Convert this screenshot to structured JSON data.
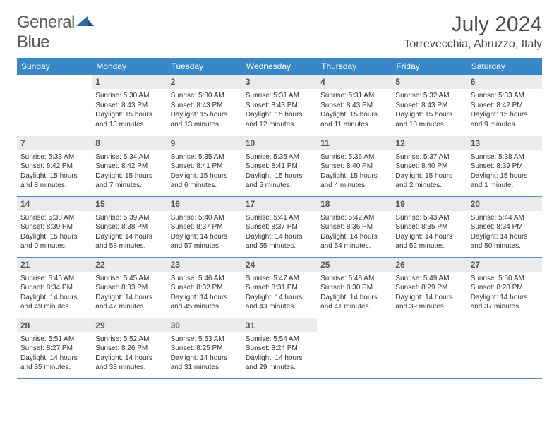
{
  "logo": {
    "word1": "General",
    "word2": "Blue"
  },
  "title": "July 2024",
  "location": "Torrevecchia, Abruzzo, Italy",
  "colors": {
    "header_bg": "#3a87c8",
    "header_text": "#ffffff",
    "daynum_bg": "#e9ebec",
    "daynum_text": "#555555",
    "week_border": "#5b8cbf",
    "logo_blue": "#2f6aa7",
    "title_color": "#4a4a4a"
  },
  "day_headers": [
    "Sunday",
    "Monday",
    "Tuesday",
    "Wednesday",
    "Thursday",
    "Friday",
    "Saturday"
  ],
  "weeks": [
    [
      null,
      {
        "n": "1",
        "sr": "5:30 AM",
        "ss": "8:43 PM",
        "dl": "15 hours and 13 minutes."
      },
      {
        "n": "2",
        "sr": "5:30 AM",
        "ss": "8:43 PM",
        "dl": "15 hours and 13 minutes."
      },
      {
        "n": "3",
        "sr": "5:31 AM",
        "ss": "8:43 PM",
        "dl": "15 hours and 12 minutes."
      },
      {
        "n": "4",
        "sr": "5:31 AM",
        "ss": "8:43 PM",
        "dl": "15 hours and 11 minutes."
      },
      {
        "n": "5",
        "sr": "5:32 AM",
        "ss": "8:43 PM",
        "dl": "15 hours and 10 minutes."
      },
      {
        "n": "6",
        "sr": "5:33 AM",
        "ss": "8:42 PM",
        "dl": "15 hours and 9 minutes."
      }
    ],
    [
      {
        "n": "7",
        "sr": "5:33 AM",
        "ss": "8:42 PM",
        "dl": "15 hours and 8 minutes."
      },
      {
        "n": "8",
        "sr": "5:34 AM",
        "ss": "8:42 PM",
        "dl": "15 hours and 7 minutes."
      },
      {
        "n": "9",
        "sr": "5:35 AM",
        "ss": "8:41 PM",
        "dl": "15 hours and 6 minutes."
      },
      {
        "n": "10",
        "sr": "5:35 AM",
        "ss": "8:41 PM",
        "dl": "15 hours and 5 minutes."
      },
      {
        "n": "11",
        "sr": "5:36 AM",
        "ss": "8:40 PM",
        "dl": "15 hours and 4 minutes."
      },
      {
        "n": "12",
        "sr": "5:37 AM",
        "ss": "8:40 PM",
        "dl": "15 hours and 2 minutes."
      },
      {
        "n": "13",
        "sr": "5:38 AM",
        "ss": "8:39 PM",
        "dl": "15 hours and 1 minute."
      }
    ],
    [
      {
        "n": "14",
        "sr": "5:38 AM",
        "ss": "8:39 PM",
        "dl": "15 hours and 0 minutes."
      },
      {
        "n": "15",
        "sr": "5:39 AM",
        "ss": "8:38 PM",
        "dl": "14 hours and 58 minutes."
      },
      {
        "n": "16",
        "sr": "5:40 AM",
        "ss": "8:37 PM",
        "dl": "14 hours and 57 minutes."
      },
      {
        "n": "17",
        "sr": "5:41 AM",
        "ss": "8:37 PM",
        "dl": "14 hours and 55 minutes."
      },
      {
        "n": "18",
        "sr": "5:42 AM",
        "ss": "8:36 PM",
        "dl": "14 hours and 54 minutes."
      },
      {
        "n": "19",
        "sr": "5:43 AM",
        "ss": "8:35 PM",
        "dl": "14 hours and 52 minutes."
      },
      {
        "n": "20",
        "sr": "5:44 AM",
        "ss": "8:34 PM",
        "dl": "14 hours and 50 minutes."
      }
    ],
    [
      {
        "n": "21",
        "sr": "5:45 AM",
        "ss": "8:34 PM",
        "dl": "14 hours and 49 minutes."
      },
      {
        "n": "22",
        "sr": "5:45 AM",
        "ss": "8:33 PM",
        "dl": "14 hours and 47 minutes."
      },
      {
        "n": "23",
        "sr": "5:46 AM",
        "ss": "8:32 PM",
        "dl": "14 hours and 45 minutes."
      },
      {
        "n": "24",
        "sr": "5:47 AM",
        "ss": "8:31 PM",
        "dl": "14 hours and 43 minutes."
      },
      {
        "n": "25",
        "sr": "5:48 AM",
        "ss": "8:30 PM",
        "dl": "14 hours and 41 minutes."
      },
      {
        "n": "26",
        "sr": "5:49 AM",
        "ss": "8:29 PM",
        "dl": "14 hours and 39 minutes."
      },
      {
        "n": "27",
        "sr": "5:50 AM",
        "ss": "8:28 PM",
        "dl": "14 hours and 37 minutes."
      }
    ],
    [
      {
        "n": "28",
        "sr": "5:51 AM",
        "ss": "8:27 PM",
        "dl": "14 hours and 35 minutes."
      },
      {
        "n": "29",
        "sr": "5:52 AM",
        "ss": "8:26 PM",
        "dl": "14 hours and 33 minutes."
      },
      {
        "n": "30",
        "sr": "5:53 AM",
        "ss": "8:25 PM",
        "dl": "14 hours and 31 minutes."
      },
      {
        "n": "31",
        "sr": "5:54 AM",
        "ss": "8:24 PM",
        "dl": "14 hours and 29 minutes."
      },
      null,
      null,
      null
    ]
  ],
  "labels": {
    "sunrise": "Sunrise: ",
    "sunset": "Sunset: ",
    "daylight": "Daylight: "
  }
}
